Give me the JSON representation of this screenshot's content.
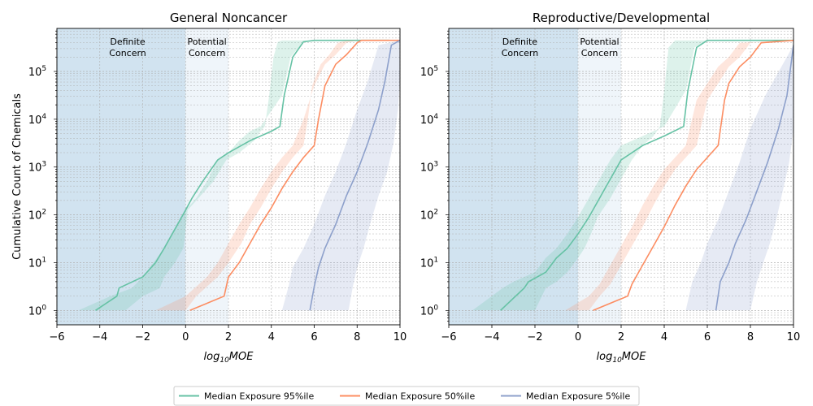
{
  "chart_data": [
    {
      "type": "line",
      "title": "General Noncancer",
      "xlabel": "log10MOE",
      "ylabel": "Cumulative Count of Chemicals",
      "xlim": [
        -6,
        10
      ],
      "ylim_log10": [
        -0.3,
        5.9
      ],
      "yscale": "log",
      "grid": "both",
      "xticks": [
        -6,
        -4,
        -2,
        0,
        2,
        4,
        6,
        8,
        10
      ],
      "yticks": [
        {
          "label": "10",
          "exp": "0",
          "v": 0
        },
        {
          "label": "10",
          "exp": "1",
          "v": 1
        },
        {
          "label": "10",
          "exp": "2",
          "v": 2
        },
        {
          "label": "10",
          "exp": "3",
          "v": 3
        },
        {
          "label": "10",
          "exp": "4",
          "v": 4
        },
        {
          "label": "10",
          "exp": "5",
          "v": 5
        }
      ],
      "regions": [
        {
          "name": "Definite Concern",
          "lines": [
            "Definite",
            "Concern"
          ],
          "x0": -6,
          "x1": 0,
          "color": "#5b9bc8",
          "opacity": 0.28
        },
        {
          "name": "Potential Concern",
          "lines": [
            "Potential",
            "Concern"
          ],
          "x0": 0,
          "x1": 2,
          "color": "#c9dfef",
          "opacity": 0.3
        }
      ],
      "series": [
        {
          "name": "Median Exposure 95%ile",
          "color": "#66c2a5",
          "x": [
            -4.2,
            -3.2,
            -3.1,
            -2.0,
            -1.4,
            -1.0,
            -0.5,
            0.0,
            0.3,
            0.8,
            1.5,
            2.0,
            3.0,
            4.0,
            4.4,
            4.6,
            5.0,
            5.5,
            6.0,
            9.5
          ],
          "log10y": [
            0.0,
            0.3,
            0.47,
            0.7,
            1.0,
            1.3,
            1.7,
            2.1,
            2.35,
            2.7,
            3.15,
            3.3,
            3.55,
            3.75,
            3.85,
            4.5,
            5.3,
            5.62,
            5.65,
            5.65
          ],
          "band_lo": [
            -5.0,
            -3.5,
            -2.5,
            -2.0,
            -1.5,
            -1.0,
            -0.5,
            0.0,
            0.5,
            1.0,
            1.5,
            2.0,
            2.5,
            3.0,
            3.5,
            4.5,
            4.9,
            5.5,
            6.2,
            9.5
          ],
          "band_hi": [
            -2.8,
            -2.0,
            -1.2,
            -1.0,
            -0.5,
            -0.1,
            0.0,
            0.1,
            0.6,
            1.3,
            1.9,
            2.5,
            3.2,
            3.5,
            3.7,
            3.9,
            4.1,
            4.3,
            4.5,
            9.5
          ]
        },
        {
          "name": "Median Exposure 50%ile",
          "color": "#fc8d62",
          "x": [
            0.2,
            1.8,
            2.0,
            2.5,
            3.0,
            3.5,
            4.0,
            4.5,
            5.0,
            5.5,
            6.0,
            6.2,
            6.5,
            7.0,
            7.5,
            8.0,
            8.2,
            10.0
          ],
          "log10y": [
            0.0,
            0.3,
            0.7,
            1.0,
            1.4,
            1.8,
            2.15,
            2.55,
            2.9,
            3.2,
            3.45,
            4.0,
            4.7,
            5.15,
            5.35,
            5.6,
            5.65,
            5.65
          ],
          "band_lo": [
            -1.4,
            0.0,
            1.0,
            1.5,
            2.0,
            2.5,
            3.0,
            3.5,
            4.0,
            4.5,
            5.0,
            5.5,
            6.0,
            6.5,
            7.0,
            7.5,
            8.0,
            10.0
          ],
          "band_hi": [
            0.0,
            0.5,
            1.5,
            2.0,
            2.6,
            3.0,
            3.5,
            4.0,
            4.5,
            5.0,
            5.5,
            5.7,
            5.9,
            6.3,
            6.7,
            7.1,
            7.5,
            10.0
          ]
        },
        {
          "name": "Median Exposure 5%ile",
          "color": "#8da0cb",
          "x": [
            5.8,
            6.0,
            6.2,
            6.5,
            7.0,
            7.5,
            8.0,
            8.5,
            9.0,
            9.3,
            9.6,
            10.0
          ],
          "log10y": [
            0.0,
            0.5,
            0.9,
            1.3,
            1.8,
            2.4,
            2.9,
            3.5,
            4.2,
            4.8,
            5.55,
            5.65
          ],
          "band_lo": [
            4.5,
            4.8,
            5.0,
            5.5,
            6.0,
            6.5,
            7.0,
            7.5,
            8.0,
            8.5,
            9.0,
            10.0
          ],
          "band_hi": [
            7.6,
            7.8,
            8.0,
            8.3,
            8.6,
            9.0,
            9.4,
            9.7,
            9.9,
            10.0,
            10.0,
            10.0
          ]
        }
      ]
    },
    {
      "type": "line",
      "title": "Reproductive/Developmental",
      "xlabel": "log10MOE",
      "ylabel": "",
      "xlim": [
        -6,
        10
      ],
      "ylim_log10": [
        -0.3,
        5.9
      ],
      "yscale": "log",
      "grid": "both",
      "xticks": [
        -6,
        -4,
        -2,
        0,
        2,
        4,
        6,
        8,
        10
      ],
      "yticks": [
        {
          "label": "10",
          "exp": "0",
          "v": 0
        },
        {
          "label": "10",
          "exp": "1",
          "v": 1
        },
        {
          "label": "10",
          "exp": "2",
          "v": 2
        },
        {
          "label": "10",
          "exp": "3",
          "v": 3
        },
        {
          "label": "10",
          "exp": "4",
          "v": 4
        },
        {
          "label": "10",
          "exp": "5",
          "v": 5
        }
      ],
      "regions": [
        {
          "name": "Definite Concern",
          "lines": [
            "Definite",
            "Concern"
          ],
          "x0": -6,
          "x1": 0,
          "color": "#5b9bc8",
          "opacity": 0.28
        },
        {
          "name": "Potential Concern",
          "lines": [
            "Potential",
            "Concern"
          ],
          "x0": 0,
          "x1": 2,
          "color": "#c9dfef",
          "opacity": 0.3
        }
      ],
      "series": [
        {
          "name": "Median Exposure 95%ile",
          "color": "#66c2a5",
          "x": [
            -3.6,
            -2.5,
            -2.3,
            -1.5,
            -1.0,
            -0.5,
            0.0,
            0.5,
            1.0,
            1.5,
            2.0,
            3.0,
            4.0,
            4.9,
            5.1,
            5.5,
            6.0,
            10.0
          ],
          "log10y": [
            0.0,
            0.47,
            0.6,
            0.8,
            1.1,
            1.3,
            1.6,
            1.95,
            2.35,
            2.75,
            3.15,
            3.45,
            3.65,
            3.85,
            4.6,
            5.5,
            5.65,
            5.65
          ],
          "band_lo": [
            -4.9,
            -3.5,
            -3.0,
            -2.0,
            -1.5,
            -1.0,
            -0.5,
            0.0,
            0.5,
            1.0,
            1.5,
            2.0,
            3.0,
            4.0,
            5.0,
            5.4,
            6.0,
            10.0
          ],
          "band_hi": [
            -2.0,
            -1.5,
            -1.0,
            -0.5,
            0.0,
            0.3,
            0.6,
            0.9,
            1.5,
            2.0,
            2.5,
            3.0,
            3.5,
            3.8,
            4.0,
            4.2,
            4.5,
            10.0
          ]
        },
        {
          "name": "Median Exposure 50%ile",
          "color": "#fc8d62",
          "x": [
            0.7,
            2.3,
            2.5,
            3.0,
            3.5,
            4.0,
            4.5,
            5.0,
            5.5,
            6.0,
            6.5,
            6.8,
            7.0,
            7.5,
            8.0,
            8.5,
            10.0
          ],
          "log10y": [
            0.0,
            0.3,
            0.55,
            0.95,
            1.35,
            1.75,
            2.2,
            2.6,
            2.95,
            3.2,
            3.45,
            4.4,
            4.75,
            5.1,
            5.3,
            5.6,
            5.65
          ],
          "band_lo": [
            -0.6,
            0.5,
            1.0,
            1.5,
            2.0,
            2.5,
            3.0,
            3.5,
            4.0,
            4.5,
            5.0,
            5.5,
            6.0,
            6.5,
            7.0,
            7.5,
            10.0
          ],
          "band_hi": [
            0.5,
            1.0,
            1.5,
            2.0,
            2.5,
            3.0,
            3.5,
            4.0,
            4.5,
            5.0,
            5.5,
            6.0,
            6.5,
            7.0,
            7.5,
            8.0,
            10.0
          ]
        },
        {
          "name": "Median Exposure 5%ile",
          "color": "#8da0cb",
          "x": [
            6.4,
            6.6,
            7.0,
            7.3,
            7.8,
            8.3,
            8.8,
            9.3,
            9.7,
            10.0
          ],
          "log10y": [
            0.0,
            0.6,
            1.0,
            1.4,
            1.9,
            2.5,
            3.1,
            3.8,
            4.5,
            5.55
          ],
          "band_lo": [
            5.0,
            5.3,
            5.7,
            6.0,
            6.5,
            7.0,
            7.5,
            8.0,
            8.7,
            10.0
          ],
          "band_hi": [
            8.0,
            8.3,
            8.6,
            8.9,
            9.2,
            9.5,
            9.8,
            10.0,
            10.0,
            10.0
          ]
        }
      ]
    }
  ],
  "legend": {
    "placement": "bottom-center",
    "entries": [
      {
        "name": "Median Exposure 95%ile",
        "color": "#66c2a5"
      },
      {
        "name": "Median Exposure 50%ile",
        "color": "#fc8d62"
      },
      {
        "name": "Median Exposure 5%ile",
        "color": "#8da0cb"
      }
    ]
  }
}
